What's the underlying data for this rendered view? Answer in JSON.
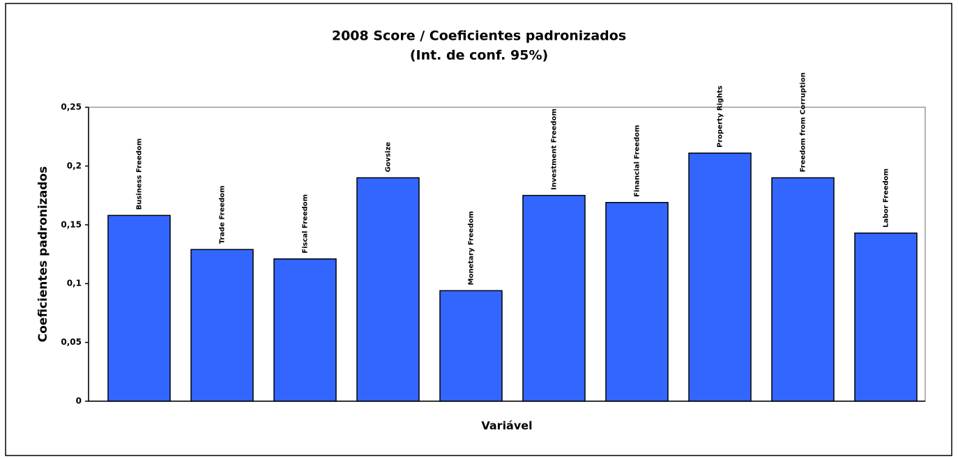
{
  "chart_data": {
    "type": "bar",
    "title": "2008 Score / Coeficientes padronizados",
    "subtitle": "(Int. de conf. 95%)",
    "x_label": "Variável",
    "y_label": "Coeficientes padronizados",
    "categories": [
      "Business Freedom",
      "Trade Freedom",
      "Fiscal Freedom",
      "Govsize",
      "Monetary Freedom",
      "Investment Freedom",
      "Financial Freedom",
      "Property Rights",
      "Freedom from Corruption",
      "Labor Freedom"
    ],
    "values": [
      0.158,
      0.129,
      0.121,
      0.19,
      0.094,
      0.175,
      0.169,
      0.211,
      0.19,
      0.143
    ],
    "color": "#3366ff",
    "ylim": [
      0,
      0.25
    ],
    "yticks": [
      0,
      {
        "value": 0.05,
        "label": "0,05"
      },
      {
        "value": 0.1,
        "label": "0,1"
      },
      {
        "value": 0.15,
        "label": "0,15"
      },
      {
        "value": 0.2,
        "label": "0,2"
      },
      {
        "value": 0.25,
        "label": "0,25"
      }
    ],
    "grid": false
  }
}
